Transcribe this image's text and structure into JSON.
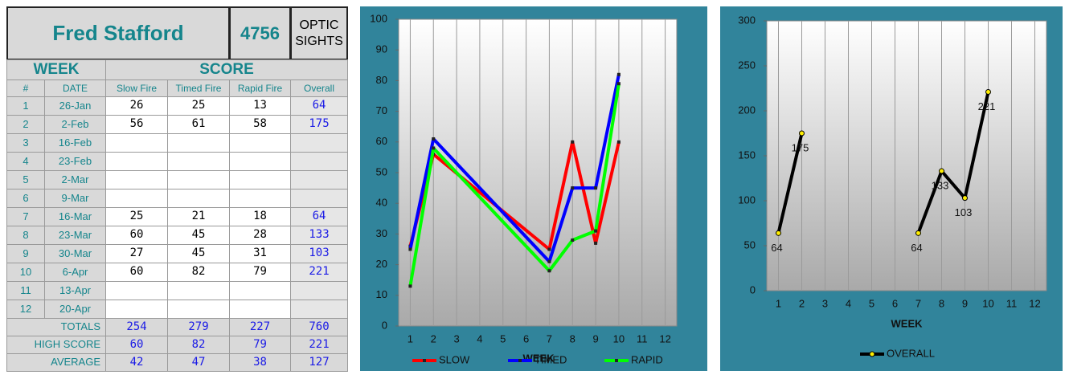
{
  "table": {
    "title": "Fred Stafford",
    "id": "4756",
    "subtitle": "OPTIC SIGHTS",
    "group_headers": [
      "WEEK",
      "SCORE"
    ],
    "columns": [
      "#",
      "DATE",
      "Slow Fire",
      "Timed Fire",
      "Rapid Fire",
      "Overall"
    ],
    "rows": [
      [
        1,
        "26-Jan",
        26,
        25,
        13,
        64
      ],
      [
        2,
        "2-Feb",
        56,
        61,
        58,
        175
      ],
      [
        3,
        "16-Feb",
        null,
        null,
        null,
        null
      ],
      [
        4,
        "23-Feb",
        null,
        null,
        null,
        null
      ],
      [
        5,
        "2-Mar",
        null,
        null,
        null,
        null
      ],
      [
        6,
        "9-Mar",
        null,
        null,
        null,
        null
      ],
      [
        7,
        "16-Mar",
        25,
        21,
        18,
        64
      ],
      [
        8,
        "23-Mar",
        60,
        45,
        28,
        133
      ],
      [
        9,
        "30-Mar",
        27,
        45,
        31,
        103
      ],
      [
        10,
        "6-Apr",
        60,
        82,
        79,
        221
      ],
      [
        11,
        "13-Apr",
        null,
        null,
        null,
        null
      ],
      [
        12,
        "20-Apr",
        null,
        null,
        null,
        null
      ]
    ],
    "summary": [
      {
        "label": "TOTALS",
        "values": [
          254,
          279,
          227,
          760
        ]
      },
      {
        "label": "HIGH SCORE",
        "values": [
          60,
          82,
          79,
          221
        ]
      },
      {
        "label": "AVERAGE",
        "values": [
          42,
          47,
          38,
          127
        ]
      }
    ]
  },
  "chart_data": [
    {
      "type": "line",
      "x": [
        1,
        2,
        7,
        8,
        9,
        10
      ],
      "xlim": [
        0.5,
        12.5
      ],
      "xticks": [
        1,
        2,
        3,
        4,
        5,
        6,
        7,
        8,
        9,
        10,
        11,
        12
      ],
      "ylim": [
        0,
        100
      ],
      "yticks": [
        0,
        10,
        20,
        30,
        40,
        50,
        60,
        70,
        80,
        90,
        100
      ],
      "x_label": "WEEK",
      "grid": true,
      "legend": "bottom",
      "marker": "square",
      "series": [
        {
          "name": "SLOW",
          "color": "#ff0000",
          "values": [
            26,
            56,
            25,
            60,
            27,
            60
          ]
        },
        {
          "name": "TIMED",
          "color": "#0000ff",
          "values": [
            25,
            61,
            21,
            45,
            45,
            82
          ]
        },
        {
          "name": "RAPID",
          "color": "#00ff00",
          "values": [
            13,
            58,
            18,
            28,
            31,
            79
          ]
        }
      ]
    },
    {
      "type": "line",
      "x": [
        1,
        2,
        3,
        4,
        5,
        6,
        7,
        8,
        9,
        10,
        11,
        12
      ],
      "xlim": [
        0.5,
        12.5
      ],
      "xticks": [
        1,
        2,
        3,
        4,
        5,
        6,
        7,
        8,
        9,
        10,
        11,
        12
      ],
      "ylim": [
        0,
        300
      ],
      "yticks": [
        0,
        50,
        100,
        150,
        200,
        250,
        300
      ],
      "x_label": "WEEK",
      "grid": true,
      "legend": "bottom",
      "marker": "circle",
      "data_labels": true,
      "series": [
        {
          "name": "OVERALL",
          "color": "#000000",
          "values": [
            64,
            175,
            null,
            null,
            null,
            null,
            64,
            133,
            103,
            221,
            null,
            null
          ]
        }
      ]
    }
  ]
}
